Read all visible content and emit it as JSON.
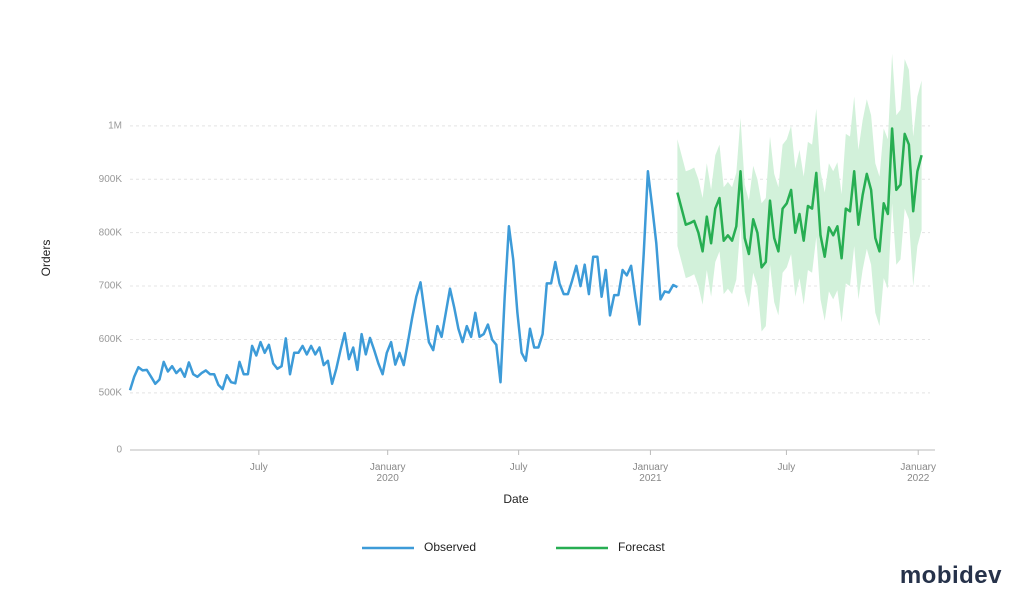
{
  "chart_data": {
    "type": "line",
    "x_label": "Date",
    "y_label": "Orders",
    "xlim": [
      0,
      190
    ],
    "xticks": [
      {
        "value": 30.6,
        "label": "July"
      },
      {
        "value": 61.2,
        "label": "January\n2020"
      },
      {
        "value": 92.3,
        "label": "July"
      },
      {
        "value": 123.6,
        "label": "January\n2021"
      },
      {
        "value": 155.9,
        "label": "July"
      },
      {
        "value": 187.2,
        "label": "January\n2022"
      }
    ],
    "ylim": [
      0,
      1140000
    ],
    "y_axis_break": [
      0,
      393000
    ],
    "yticks": [
      0,
      {
        "value": 500000,
        "label": "500K"
      },
      {
        "value": 600000,
        "label": "600K"
      },
      {
        "value": 700000,
        "label": "700K"
      },
      {
        "value": 800000,
        "label": "800K"
      },
      {
        "value": 900000,
        "label": "900K"
      },
      {
        "value": 1000000,
        "label": "1M"
      }
    ],
    "grid": true,
    "legend": "bottom",
    "series": [
      {
        "name": "Observed",
        "color": "#3d9bd8",
        "x": [
          0,
          1,
          2,
          3,
          4,
          5,
          6,
          7,
          8,
          9,
          10,
          11,
          12,
          13,
          14,
          15,
          16,
          17,
          18,
          19,
          20,
          21,
          22,
          23,
          24,
          25,
          26,
          27,
          28,
          29,
          30,
          31,
          32,
          33,
          34,
          35,
          36,
          37,
          38,
          39,
          40,
          41,
          42,
          43,
          44,
          45,
          46,
          47,
          48,
          49,
          50,
          51,
          52,
          53,
          54,
          55,
          56,
          57,
          58,
          59,
          60,
          61,
          62,
          63,
          64,
          65,
          66,
          67,
          68,
          69,
          70,
          71,
          72,
          73,
          74,
          75,
          76,
          77,
          78,
          79,
          80,
          81,
          82,
          83,
          84,
          85,
          86,
          87,
          88,
          89,
          90,
          91,
          92,
          93,
          94,
          95,
          96,
          97,
          98,
          99,
          100,
          101,
          102,
          103,
          104,
          105,
          106,
          107,
          108,
          109,
          110,
          111,
          112,
          113,
          114,
          115,
          116,
          117,
          118,
          119,
          120,
          121,
          122,
          123,
          124,
          125,
          126,
          127,
          128,
          129,
          130
        ],
        "values": [
          505000,
          530000,
          548000,
          542000,
          543000,
          530000,
          517000,
          525000,
          558000,
          540000,
          550000,
          537000,
          545000,
          530000,
          557000,
          535000,
          530000,
          537000,
          542000,
          535000,
          535000,
          515000,
          507000,
          533000,
          520000,
          518000,
          558000,
          535000,
          535000,
          588000,
          570000,
          595000,
          575000,
          590000,
          555000,
          545000,
          550000,
          602000,
          535000,
          575000,
          575000,
          588000,
          572000,
          588000,
          572000,
          585000,
          552000,
          560000,
          517000,
          545000,
          580000,
          612000,
          563000,
          585000,
          543000,
          610000,
          572000,
          603000,
          580000,
          555000,
          535000,
          575000,
          595000,
          553000,
          575000,
          552000,
          595000,
          640000,
          680000,
          707000,
          650000,
          595000,
          580000,
          625000,
          605000,
          650000,
          695000,
          660000,
          620000,
          595000,
          625000,
          605000,
          650000,
          605000,
          610000,
          628000,
          600000,
          590000,
          520000,
          680000,
          812000,
          750000,
          650000,
          575000,
          560000,
          620000,
          585000,
          585000,
          610000,
          705000,
          705000,
          745000,
          705000,
          685000,
          685000,
          710000,
          738000,
          700000,
          740000,
          685000,
          755000,
          755000,
          680000,
          730000,
          645000,
          683000,
          683000,
          730000,
          720000,
          738000,
          680000,
          628000,
          760000,
          915000,
          850000,
          780000,
          675000,
          690000,
          688000,
          702000,
          698000
        ]
      },
      {
        "name": "Forecast",
        "color": "#27ae52",
        "band_color": "#d2f1da",
        "x": [
          130,
          131,
          132,
          133,
          134,
          135,
          136,
          137,
          138,
          139,
          140,
          141,
          142,
          143,
          144,
          145,
          146,
          147,
          148,
          149,
          150,
          151,
          152,
          153,
          154,
          155,
          156,
          157,
          158,
          159,
          160,
          161,
          162,
          163,
          164,
          165,
          166,
          167,
          168,
          169,
          170,
          171,
          172,
          173,
          174,
          175,
          176,
          177,
          178,
          179,
          180,
          181,
          182,
          183,
          184,
          185,
          186,
          187,
          188
        ],
        "values": [
          875000,
          845000,
          815000,
          818000,
          822000,
          800000,
          765000,
          830000,
          780000,
          845000,
          865000,
          785000,
          795000,
          785000,
          812000,
          915000,
          790000,
          760000,
          825000,
          800000,
          735000,
          745000,
          860000,
          790000,
          765000,
          845000,
          855000,
          880000,
          800000,
          835000,
          785000,
          850000,
          845000,
          912000,
          795000,
          755000,
          810000,
          795000,
          812000,
          752000,
          845000,
          840000,
          915000,
          815000,
          870000,
          910000,
          880000,
          790000,
          765000,
          855000,
          835000,
          995000,
          880000,
          890000,
          985000,
          965000,
          840000,
          915000,
          945000
        ],
        "lower": [
          775000,
          745000,
          715000,
          718000,
          722000,
          700000,
          665000,
          730000,
          680000,
          745000,
          765000,
          685000,
          695000,
          685000,
          712000,
          815000,
          690000,
          660000,
          725000,
          700000,
          615000,
          625000,
          740000,
          670000,
          645000,
          725000,
          735000,
          760000,
          680000,
          715000,
          665000,
          730000,
          725000,
          792000,
          675000,
          635000,
          690000,
          675000,
          692000,
          632000,
          705000,
          700000,
          775000,
          675000,
          730000,
          770000,
          740000,
          650000,
          625000,
          715000,
          695000,
          855000,
          740000,
          750000,
          845000,
          825000,
          700000,
          775000,
          805000
        ],
        "upper": [
          975000,
          945000,
          915000,
          918000,
          922000,
          900000,
          865000,
          930000,
          880000,
          945000,
          965000,
          885000,
          895000,
          885000,
          912000,
          1015000,
          890000,
          860000,
          925000,
          900000,
          855000,
          865000,
          980000,
          910000,
          885000,
          965000,
          975000,
          1000000,
          920000,
          955000,
          905000,
          970000,
          965000,
          1032000,
          915000,
          875000,
          930000,
          915000,
          932000,
          872000,
          985000,
          980000,
          1055000,
          955000,
          1010000,
          1050000,
          1020000,
          930000,
          905000,
          995000,
          975000,
          1135000,
          1020000,
          1030000,
          1125000,
          1105000,
          980000,
          1055000,
          1085000
        ]
      }
    ]
  },
  "logo": "mobidev"
}
